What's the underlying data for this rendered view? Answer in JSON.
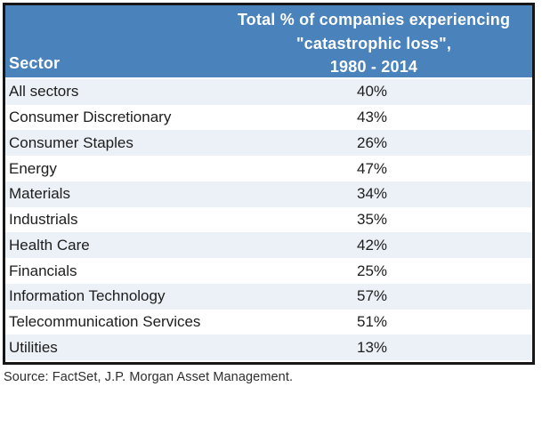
{
  "colors": {
    "header_bg": "#4A82BB",
    "header_text": "#FFFFFF",
    "row_bg": "#FFFFFF",
    "row_alt_bg": "#EBF1F6",
    "body_text": "#1D1D1D",
    "border": "#161616"
  },
  "table": {
    "header": {
      "sector_label": "Sector",
      "title_lines": [
        "Total % of companies experiencing",
        "\"catastrophic loss\",",
        "1980 - 2014"
      ]
    },
    "rows": [
      {
        "sector": "All sectors",
        "value": "40%"
      },
      {
        "sector": "Consumer Discretionary",
        "value": "43%"
      },
      {
        "sector": "Consumer Staples",
        "value": "26%"
      },
      {
        "sector": "Energy",
        "value": "47%"
      },
      {
        "sector": "Materials",
        "value": "34%"
      },
      {
        "sector": "Industrials",
        "value": "35%"
      },
      {
        "sector": "Health Care",
        "value": "42%"
      },
      {
        "sector": "Financials",
        "value": "25%"
      },
      {
        "sector": "Information Technology",
        "value": "57%"
      },
      {
        "sector": "Telecommunication Services",
        "value": "51%"
      },
      {
        "sector": "Utilities",
        "value": "13%"
      }
    ]
  },
  "footer": {
    "source": "Source: FactSet, J.P. Morgan Asset Management."
  },
  "chart_data": {
    "type": "table",
    "title": "Total % of companies experiencing \"catastrophic loss\", 1980 - 2014",
    "columns": [
      "Sector",
      "Total % of companies experiencing \"catastrophic loss\", 1980 - 2014"
    ],
    "categories": [
      "All sectors",
      "Consumer Discretionary",
      "Consumer Staples",
      "Energy",
      "Materials",
      "Industrials",
      "Health Care",
      "Financials",
      "Information Technology",
      "Telecommunication Services",
      "Utilities"
    ],
    "values": [
      40,
      43,
      26,
      47,
      34,
      35,
      42,
      25,
      57,
      51,
      13
    ],
    "unit": "%",
    "source": "Source: FactSet, J.P. Morgan Asset Management."
  }
}
